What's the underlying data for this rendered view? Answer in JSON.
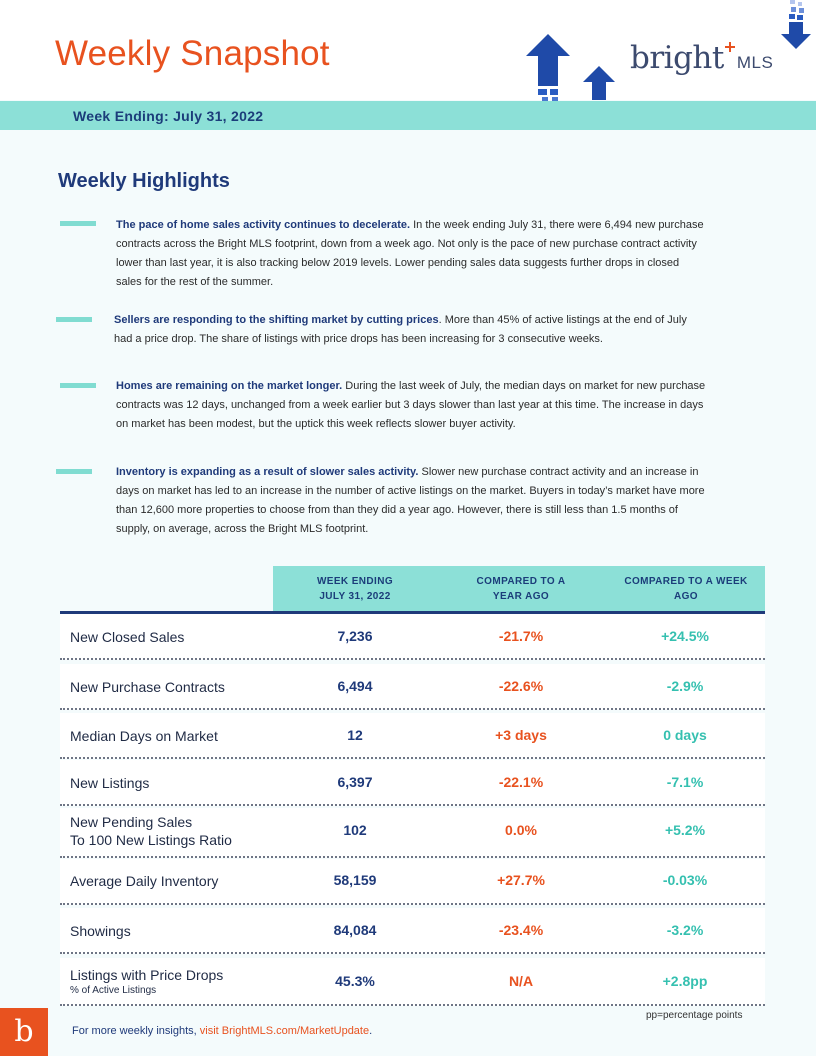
{
  "header": {
    "title": "Weekly Snapshot",
    "logo_word": "bright",
    "logo_suffix": "MLS",
    "week_ending": "Week Ending:  July 31, 2022"
  },
  "highlights": {
    "title": "Weekly Highlights",
    "items": [
      {
        "lead": "The pace of home sales activity continues to decelerate.",
        "body": " In the week ending July 31, there were 6,494 new purchase contracts across the Bright MLS footprint, down from a week ago. Not only is the pace of new purchase contract activity lower than last year, it is also tracking below 2019 levels. Lower pending sales data suggests further drops in closed sales for the rest of the summer."
      },
      {
        "lead": "Sellers are responding to the shifting market by cutting prices",
        "body": ". More than 45% of active listings at the end of July had a price drop. The share of listings with price drops has been increasing for 3 consecutive weeks."
      },
      {
        "lead": "Homes are remaining on the market longer.",
        "body": " During the last week of July, the median days on market for new purchase contracts was 12 days, unchanged from a week earlier but 3 days slower than last year at this time. The increase in days on market has been modest, but the uptick this week reflects slower buyer activity."
      },
      {
        "lead": "Inventory is expanding as a result of slower sales activity.",
        "body": " Slower new purchase contract activity and an increase in days on market has led to an increase in the number of active listings on the market. Buyers in today’s market have more than 12,600 more properties to choose from than they did a year ago. However, there is still less than 1.5 months of supply, on average, across the Bright MLS footprint."
      }
    ]
  },
  "table": {
    "headers": [
      "WEEK  ENDING\nJULY 31, 2022",
      "COMPARED  TO A\nYEAR AGO",
      "COMPARED  TO A WEEK\nAGO"
    ],
    "rows": [
      {
        "label": "New Closed Sales",
        "sub": "",
        "value": "7,236",
        "year": "-21.7%",
        "week": "+24.5%"
      },
      {
        "label": "New Purchase Contracts",
        "sub": "",
        "value": "6,494",
        "year": "-22.6%",
        "week": "-2.9%"
      },
      {
        "label": "Median Days on Market",
        "sub": "",
        "value": "12",
        "year": "+3 days",
        "week": "0 days"
      },
      {
        "label": "New Listings",
        "sub": "",
        "value": "6,397",
        "year": "-22.1%",
        "week": "-7.1%"
      },
      {
        "label": "New Pending Sales",
        "label2": "To 100 New Listings Ratio",
        "sub": "",
        "value": "102",
        "year": "0.0%",
        "week": "+5.2%"
      },
      {
        "label": "Average Daily Inventory",
        "sub": "",
        "value": "58,159",
        "year": "+27.7%",
        "week": "-0.03%"
      },
      {
        "label": "Showings",
        "sub": "",
        "value": "84,084",
        "year": "-23.4%",
        "week": "-3.2%"
      },
      {
        "label": "Listings with Price Drops",
        "sub": "% of Active Listings",
        "value": "45.3%",
        "year": "N/A",
        "week": "+2.8pp"
      }
    ],
    "note": "pp=percentage points"
  },
  "footer": {
    "logo_letter": "b",
    "text": "For more weekly insights, ",
    "link": "visit BrightMLS.com/MarketUpdate",
    "end": "."
  },
  "colors": {
    "brand_orange": "#e8521f",
    "navy": "#1f3a7a",
    "teal": "#8ce0d7",
    "teal_text": "#35c0b0"
  }
}
